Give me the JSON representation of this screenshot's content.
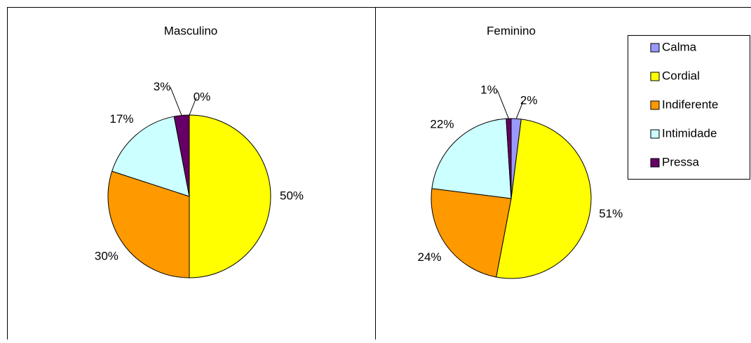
{
  "chart_data": [
    {
      "type": "pie",
      "title": "Masculino",
      "categories": [
        "Calma",
        "Cordial",
        "Indiferente",
        "Intimidade",
        "Pressa"
      ],
      "values": [
        0,
        50,
        30,
        17,
        3
      ],
      "value_labels": [
        "0%",
        "50%",
        "30%",
        "17%",
        "3%"
      ],
      "colors": [
        "#9999ff",
        "#ffff00",
        "#ff9900",
        "#ccffff",
        "#660066"
      ],
      "legend": false
    },
    {
      "type": "pie",
      "title": "Feminino",
      "categories": [
        "Calma",
        "Cordial",
        "Indiferente",
        "Intimidade",
        "Pressa"
      ],
      "values": [
        2,
        51,
        24,
        22,
        1
      ],
      "value_labels": [
        "2%",
        "51%",
        "24%",
        "22%",
        "1%"
      ],
      "colors": [
        "#9999ff",
        "#ffff00",
        "#ff9900",
        "#ccffff",
        "#660066"
      ],
      "legend": "upper right"
    }
  ]
}
